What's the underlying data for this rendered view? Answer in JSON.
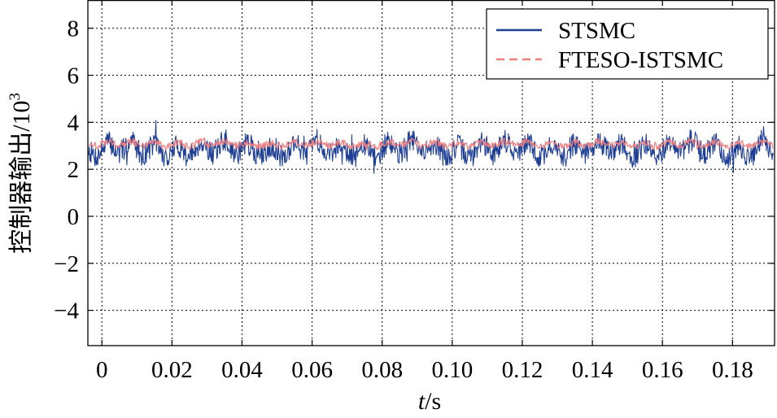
{
  "chart_data": {
    "type": "line",
    "title": "",
    "xlabel_italic": "t",
    "xlabel_unit": "/s",
    "ylabel_main": "控制器输出/10",
    "ylabel_exp": "3",
    "xlim": [
      -0.004,
      0.192
    ],
    "ylim": [
      -5.5,
      9.2
    ],
    "x_ticks": [
      0,
      0.02,
      0.04,
      0.06,
      0.08,
      0.1,
      0.12,
      0.14,
      0.16,
      0.18
    ],
    "x_tick_labels": [
      "0",
      "0.02",
      "0.04",
      "0.06",
      "0.08",
      "0.10",
      "0.12",
      "0.14",
      "0.16",
      "0.18"
    ],
    "y_ticks": [
      -4,
      -2,
      0,
      2,
      4,
      6,
      8
    ],
    "y_tick_labels": [
      "−4",
      "−2",
      "0",
      "2",
      "4",
      "6",
      "8"
    ],
    "grid": true,
    "legend_position": "top-right",
    "series": [
      {
        "name": "STSMC",
        "color": "#1f3f94",
        "style": "solid",
        "center": 2.9,
        "band_low": 2.1,
        "band_high": 3.6
      },
      {
        "name": "FTESO-ISTSMC",
        "color": "#f08080",
        "style": "dashed",
        "center": 3.05,
        "band_low": 2.85,
        "band_high": 3.3
      }
    ]
  }
}
